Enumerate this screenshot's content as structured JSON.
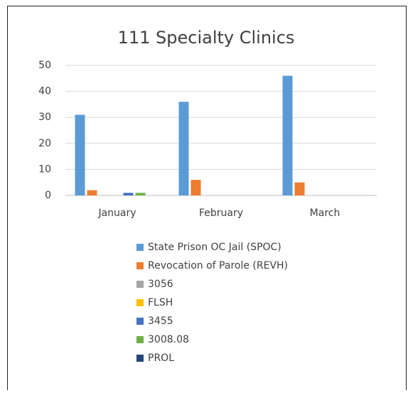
{
  "chart_data": {
    "type": "bar",
    "title": "111 Specialty Clinics",
    "categories": [
      "January",
      "February",
      "March"
    ],
    "series": [
      {
        "name": "State Prison OC Jail (SPOC)",
        "color": "#5b9bd5",
        "values": [
          31,
          36,
          46
        ]
      },
      {
        "name": "Revocation of Parole (REVH)",
        "color": "#ed7d31",
        "values": [
          2,
          6,
          5
        ]
      },
      {
        "name": "3056",
        "color": "#a5a5a5",
        "values": [
          0,
          0,
          0
        ]
      },
      {
        "name": "FLSH",
        "color": "#ffc000",
        "values": [
          0,
          0,
          0
        ]
      },
      {
        "name": "3455",
        "color": "#4472c4",
        "values": [
          1,
          0,
          0
        ]
      },
      {
        "name": "3008.08",
        "color": "#70ad47",
        "values": [
          1,
          0,
          0
        ]
      },
      {
        "name": "PROL",
        "color": "#264478",
        "values": [
          0,
          0,
          0
        ]
      }
    ],
    "ylim": [
      0,
      50
    ],
    "yticks": [
      0,
      10,
      20,
      30,
      40,
      50
    ],
    "grid": true,
    "legend": "bottom"
  }
}
